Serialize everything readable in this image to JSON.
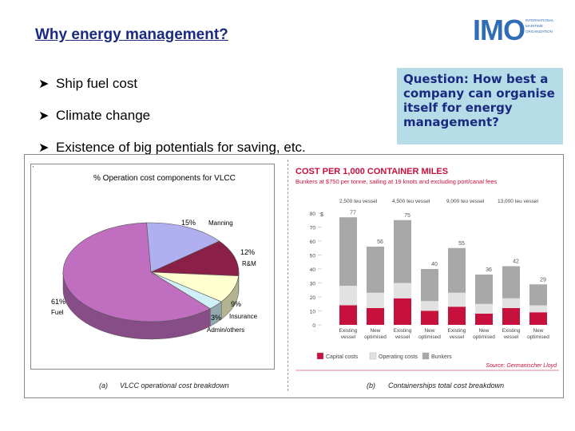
{
  "slide": {
    "title": "Why energy management?",
    "bullets": [
      "Ship fuel cost",
      "Climate change",
      "Existence of big potentials for saving, etc."
    ],
    "question": "Question: How best a company can organise itself for energy management?"
  },
  "logo": {
    "mark": "IMO",
    "org_lines": [
      "INTERNATIONAL",
      "MARITIME",
      "ORGANIZATION"
    ]
  },
  "pie_chart": {
    "title": "% Operation cost components for VLCC",
    "caption_letter": "(a)",
    "caption": "VLCC operational cost breakdown"
  },
  "chart_data": [
    {
      "type": "pie",
      "title": "% Operation cost components for VLCC",
      "slices": [
        {
          "label": "Fuel",
          "value": 61,
          "value_label": "61%",
          "color": "#c06ec0"
        },
        {
          "label": "Manning",
          "value": 15,
          "value_label": "15%",
          "color": "#b0b0f0"
        },
        {
          "label": "R&M",
          "value": 12,
          "value_label": "12%",
          "color": "#8a2048"
        },
        {
          "label": "Admin/others",
          "value": 3,
          "value_label": "3%",
          "color": "#d0f0f8"
        },
        {
          "label": "Insurance",
          "value": 9,
          "value_label": "9%",
          "color": "#ffffd0"
        }
      ],
      "extra_segment_color": "#708890"
    },
    {
      "type": "bar",
      "title": "COST PER 1,000 CONTAINER MILES",
      "subtitle": "Bunkers at $750 per tonne, sailing at 19 knots and excluding port/canal fees",
      "ylabel": "$",
      "ylim": [
        0,
        80
      ],
      "yticks": [
        0,
        10,
        20,
        30,
        40,
        50,
        60,
        70,
        80
      ],
      "groups": [
        "2,500 teu vessel",
        "4,500 teu vessel",
        "9,000 teu vessel",
        "13,000 teu vessel"
      ],
      "categories": [
        "Existing vessel",
        "New optimised",
        "Existing vessel",
        "New optimised",
        "Existing vessel",
        "New optimised",
        "Existing vessel",
        "New optimised"
      ],
      "category_lines": [
        [
          "Existing",
          "vessel"
        ],
        [
          "New",
          "optimised"
        ],
        [
          "Existing",
          "vessel"
        ],
        [
          "New",
          "optimised"
        ],
        [
          "Existing",
          "vessel"
        ],
        [
          "New",
          "optimised"
        ],
        [
          "Existing",
          "vessel"
        ],
        [
          "New",
          "optimised"
        ]
      ],
      "totals": [
        77,
        56,
        75,
        40,
        55,
        36,
        42,
        29
      ],
      "series": [
        {
          "name": "Capital costs",
          "color": "#c8103c",
          "values": [
            14,
            12,
            19,
            10,
            13,
            8,
            12,
            9
          ]
        },
        {
          "name": "Operating costs",
          "color": "#e2e2e2",
          "values": [
            14,
            11,
            11,
            7,
            10,
            7,
            7,
            5
          ]
        },
        {
          "name": "Bunkers",
          "color": "#a8a8a8",
          "values": [
            49,
            33,
            45,
            23,
            32,
            21,
            23,
            15
          ]
        }
      ],
      "source": "Source: Germanischer Lloyd",
      "caption_letter": "(b)",
      "caption": "Containerships total cost breakdown",
      "accent_color": "#c8103c"
    }
  ]
}
